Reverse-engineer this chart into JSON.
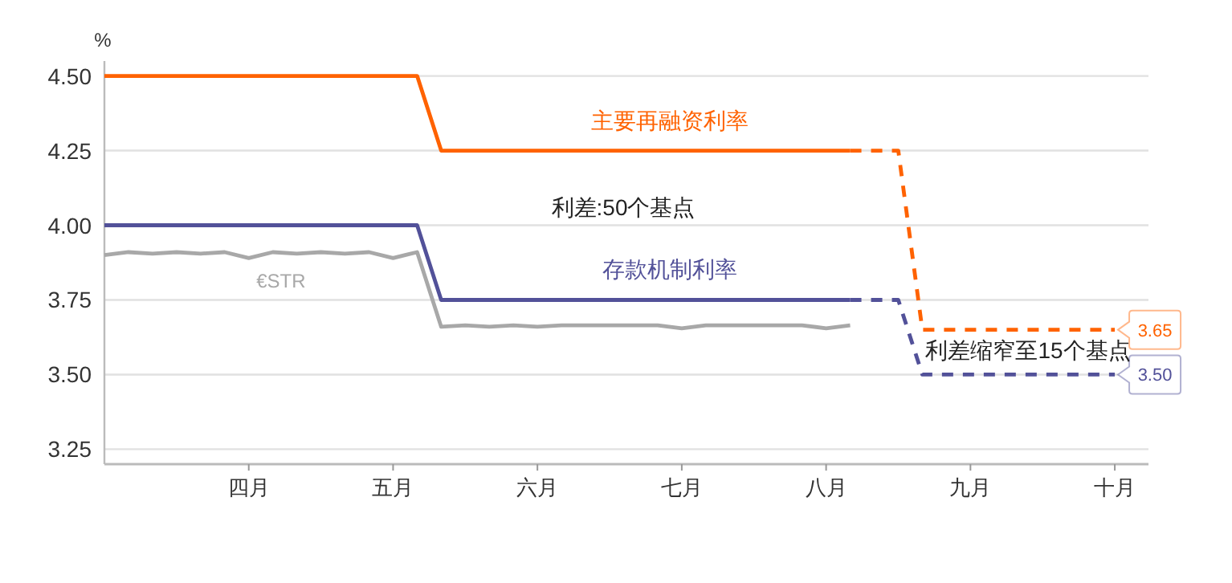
{
  "chart_data": {
    "type": "line",
    "ylabel": "%",
    "grid": "y",
    "categories": [
      null,
      null,
      null,
      null,
      null,
      null,
      "四月",
      null,
      null,
      null,
      null,
      null,
      "五月",
      null,
      null,
      null,
      null,
      null,
      "六月",
      null,
      null,
      null,
      null,
      null,
      "七月",
      null,
      null,
      null,
      null,
      null,
      "八月",
      null,
      null,
      null,
      null,
      null,
      "九月",
      null,
      null,
      null,
      null,
      null,
      "十月",
      null
    ],
    "ylim": [
      3.2,
      4.55
    ],
    "yticks": [
      {
        "value": 3.25,
        "label": "3.25"
      },
      {
        "value": 3.5,
        "label": "3.50"
      },
      {
        "value": 3.75,
        "label": "3.75"
      },
      {
        "value": 4.0,
        "label": "4.00"
      },
      {
        "value": 4.25,
        "label": "4.25"
      },
      {
        "value": 4.5,
        "label": "4.50"
      }
    ],
    "annotations": [
      "利差:50个基点",
      "利差缩窄至15个基点"
    ],
    "series": [
      {
        "name": "主要再融资利率",
        "color": "#ff6200",
        "line_style": "solid",
        "values": [
          4.5,
          4.5,
          4.5,
          4.5,
          4.5,
          4.5,
          4.5,
          4.5,
          4.5,
          4.5,
          4.5,
          4.5,
          4.5,
          4.5,
          4.25,
          4.25,
          4.25,
          4.25,
          4.25,
          4.25,
          4.25,
          4.25,
          4.25,
          4.25,
          4.25,
          4.25,
          4.25,
          4.25,
          4.25,
          4.25,
          4.25,
          4.25,
          null,
          null,
          null,
          null,
          null,
          null,
          null,
          null,
          null,
          null,
          null,
          null
        ]
      },
      {
        "color": "#ff6200",
        "line_style": "dashed",
        "values": [
          null,
          null,
          null,
          null,
          null,
          null,
          null,
          null,
          null,
          null,
          null,
          null,
          null,
          null,
          null,
          null,
          null,
          null,
          null,
          null,
          null,
          null,
          null,
          null,
          null,
          null,
          null,
          null,
          null,
          null,
          null,
          4.25,
          4.25,
          4.25,
          3.65,
          3.65,
          3.65,
          3.65,
          3.65,
          3.65,
          3.65,
          3.65,
          3.65,
          null
        ],
        "value_labels": [
          null,
          null,
          null,
          null,
          null,
          null,
          null,
          null,
          null,
          null,
          null,
          null,
          null,
          null,
          null,
          null,
          null,
          null,
          null,
          null,
          null,
          null,
          null,
          null,
          null,
          null,
          null,
          null,
          null,
          null,
          null,
          null,
          null,
          null,
          null,
          null,
          null,
          null,
          null,
          null,
          null,
          null,
          "3.65",
          null
        ]
      },
      {
        "name": "存款机制利率",
        "color": "#525199",
        "line_style": "solid",
        "values": [
          4.0,
          4.0,
          4.0,
          4.0,
          4.0,
          4.0,
          4.0,
          4.0,
          4.0,
          4.0,
          4.0,
          4.0,
          4.0,
          4.0,
          3.75,
          3.75,
          3.75,
          3.75,
          3.75,
          3.75,
          3.75,
          3.75,
          3.75,
          3.75,
          3.75,
          3.75,
          3.75,
          3.75,
          3.75,
          3.75,
          3.75,
          3.75,
          null,
          null,
          null,
          null,
          null,
          null,
          null,
          null,
          null,
          null,
          null,
          null
        ]
      },
      {
        "color": "#525199",
        "line_style": "dashed",
        "values": [
          null,
          null,
          null,
          null,
          null,
          null,
          null,
          null,
          null,
          null,
          null,
          null,
          null,
          null,
          null,
          null,
          null,
          null,
          null,
          null,
          null,
          null,
          null,
          null,
          null,
          null,
          null,
          null,
          null,
          null,
          null,
          3.75,
          3.75,
          3.75,
          3.5,
          3.5,
          3.5,
          3.5,
          3.5,
          3.5,
          3.5,
          3.5,
          3.5,
          null
        ],
        "value_labels": [
          null,
          null,
          null,
          null,
          null,
          null,
          null,
          null,
          null,
          null,
          null,
          null,
          null,
          null,
          null,
          null,
          null,
          null,
          null,
          null,
          null,
          null,
          null,
          null,
          null,
          null,
          null,
          null,
          null,
          null,
          null,
          null,
          null,
          null,
          null,
          null,
          null,
          null,
          null,
          null,
          null,
          null,
          "3.50",
          null
        ]
      },
      {
        "name": "€STR",
        "color": "#a8a8a8",
        "line_style": "solid",
        "values": [
          3.9,
          3.91,
          3.905,
          3.91,
          3.905,
          3.91,
          3.89,
          3.91,
          3.905,
          3.91,
          3.905,
          3.91,
          3.89,
          3.91,
          3.66,
          3.665,
          3.66,
          3.665,
          3.66,
          3.665,
          3.665,
          3.665,
          3.665,
          3.665,
          3.655,
          3.665,
          3.665,
          3.665,
          3.665,
          3.665,
          3.655,
          3.665,
          null,
          null,
          null,
          null,
          null,
          null,
          null,
          null,
          null,
          null,
          null,
          null
        ]
      }
    ]
  }
}
